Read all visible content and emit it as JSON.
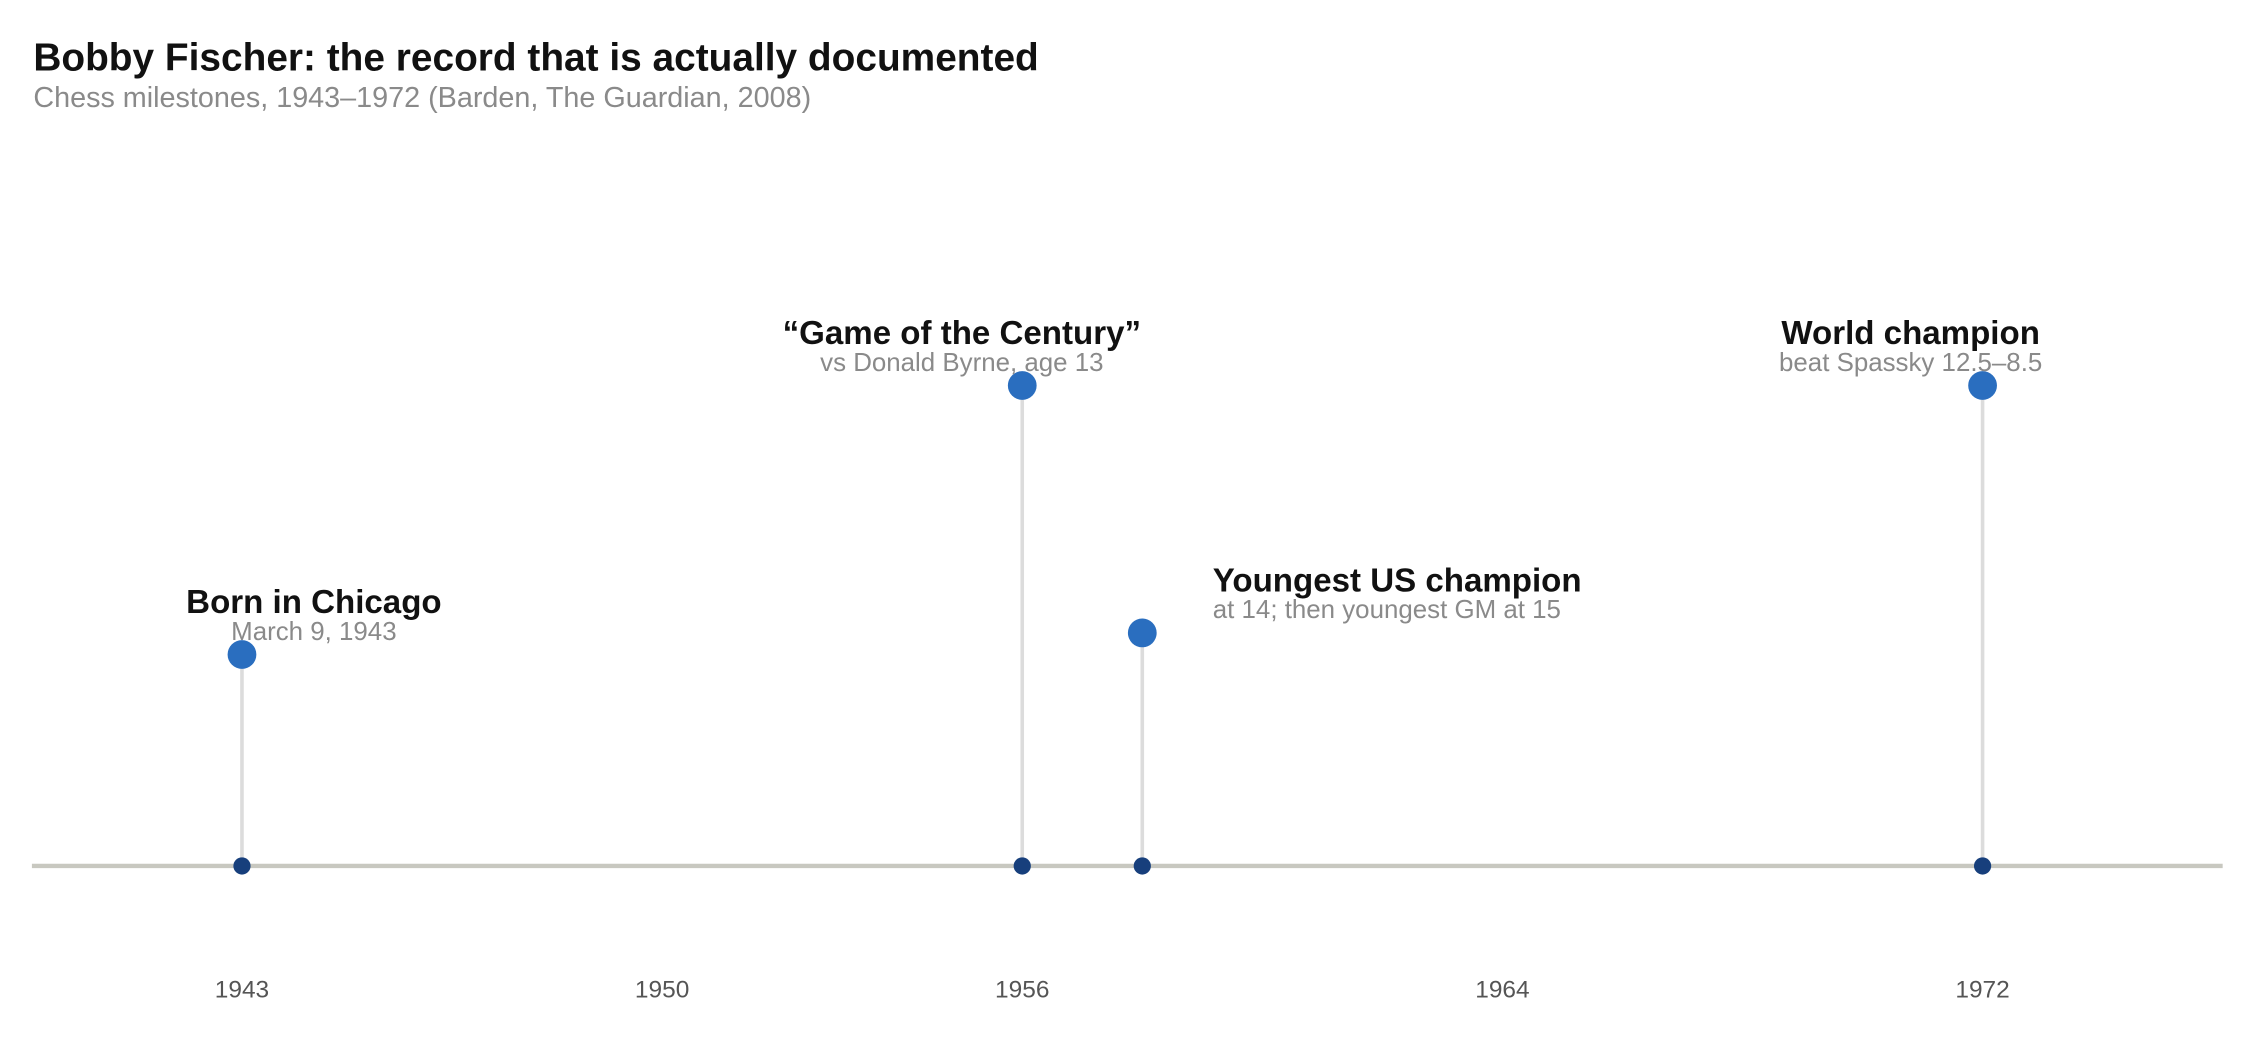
{
  "chart_data": {
    "type": "timeline",
    "title": "Bobby Fischer: the record that is actually documented",
    "subtitle": "Chess milestones, 1943–1972 (Barden, The Guardian, 2008)",
    "x": [
      1943,
      1956,
      1958,
      1972
    ],
    "events": [
      {
        "title": "Born in Chicago",
        "subtitle": "March 9, 1943"
      },
      {
        "title": "“Game of the Century”",
        "subtitle": "vs Donald Byrne, age 13"
      },
      {
        "title": "Youngest US champion",
        "subtitle": "at 14; then youngest GM at 15"
      },
      {
        "title": "World champion",
        "subtitle": "beat Spassky 12.5–8.5"
      }
    ],
    "xlim": [
      1939.5,
      1976
    ],
    "xticks": [
      1943,
      1950,
      1956,
      1964,
      1972
    ],
    "color": "#2a6ebf",
    "base_color": "#173f7c"
  }
}
